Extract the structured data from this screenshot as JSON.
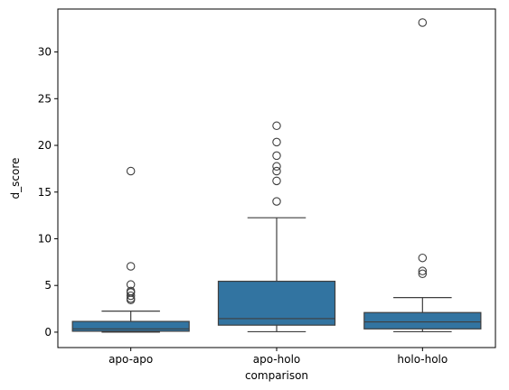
{
  "chart_data": {
    "type": "box",
    "xlabel": "comparison",
    "ylabel": "d_score",
    "ylim": [
      -1.65,
      34.6
    ],
    "yticks": [
      0,
      5,
      10,
      15,
      20,
      25,
      30
    ],
    "ytick_labels": [
      "0",
      "5",
      "10",
      "15",
      "20",
      "25",
      "30"
    ],
    "grid": false,
    "box_color": "#3274a1",
    "line_color": "#3f3f3f",
    "categories": [
      "apo-apo",
      "apo-holo",
      "holo-holo"
    ],
    "boxes": [
      {
        "category": "apo-apo",
        "whisker_low": 0.0,
        "q1": 0.1,
        "median": 0.35,
        "q3": 1.15,
        "whisker_high": 2.25,
        "outliers": [
          3.45,
          3.6,
          3.9,
          4.25,
          4.4,
          5.1,
          7.05,
          17.25
        ]
      },
      {
        "category": "apo-holo",
        "whisker_low": 0.05,
        "q1": 0.75,
        "median": 1.45,
        "q3": 5.45,
        "whisker_high": 12.25,
        "outliers": [
          14.0,
          16.2,
          17.25,
          17.75,
          18.9,
          20.35,
          22.1
        ]
      },
      {
        "category": "holo-holo",
        "whisker_low": 0.05,
        "q1": 0.35,
        "median": 1.1,
        "q3": 2.1,
        "whisker_high": 3.7,
        "outliers": [
          6.25,
          6.55,
          7.95,
          33.15
        ]
      }
    ]
  }
}
